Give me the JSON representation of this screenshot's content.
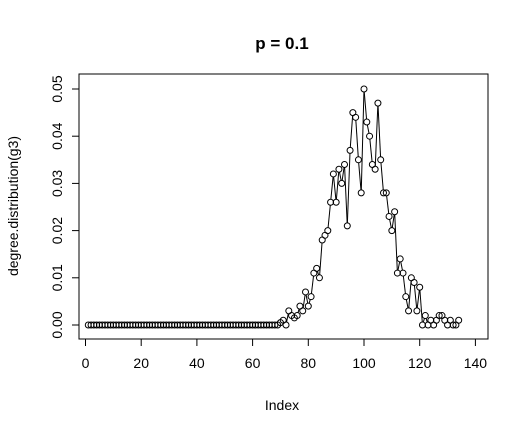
{
  "chart_data": {
    "type": "line",
    "title": "p = 0.1",
    "xlabel": "Index",
    "ylabel": "degree.distribution(g3)",
    "xlim": [
      1,
      138
    ],
    "ylim": [
      0,
      0.05
    ],
    "x_ticks": [
      0,
      20,
      40,
      60,
      80,
      100,
      120,
      140
    ],
    "y_ticks": [
      "0.00",
      "0.01",
      "0.02",
      "0.03",
      "0.04",
      "0.05"
    ],
    "grid": false,
    "legend": "none",
    "marker": "open-circle",
    "series": [
      {
        "values": [
          0,
          0,
          0,
          0,
          0,
          0,
          0,
          0,
          0,
          0,
          0,
          0,
          0,
          0,
          0,
          0,
          0,
          0,
          0,
          0,
          0,
          0,
          0,
          0,
          0,
          0,
          0,
          0,
          0,
          0,
          0,
          0,
          0,
          0,
          0,
          0,
          0,
          0,
          0,
          0,
          0,
          0,
          0,
          0,
          0,
          0,
          0,
          0,
          0,
          0,
          0,
          0,
          0,
          0,
          0,
          0,
          0,
          0,
          0,
          0,
          0,
          0,
          0,
          0,
          0,
          0,
          0,
          0,
          0,
          0.0005,
          0.001,
          0,
          0.003,
          0.002,
          0.0015,
          0.002,
          0.004,
          0.003,
          0.007,
          0.004,
          0.006,
          0.011,
          0.012,
          0.01,
          0.018,
          0.019,
          0.02,
          0.026,
          0.032,
          0.026,
          0.033,
          0.03,
          0.034,
          0.021,
          0.037,
          0.045,
          0.044,
          0.035,
          0.028,
          0.05,
          0.043,
          0.04,
          0.034,
          0.033,
          0.047,
          0.035,
          0.028,
          0.028,
          0.023,
          0.02,
          0.024,
          0.011,
          0.014,
          0.011,
          0.006,
          0.003,
          0.01,
          0.009,
          0.003,
          0.008,
          0.0,
          0.002,
          0.0,
          0.001,
          0.0,
          0.001,
          0.002,
          0.002,
          0.001,
          0.0,
          0.001,
          0.0,
          0.0,
          0.001
        ]
      }
    ]
  }
}
